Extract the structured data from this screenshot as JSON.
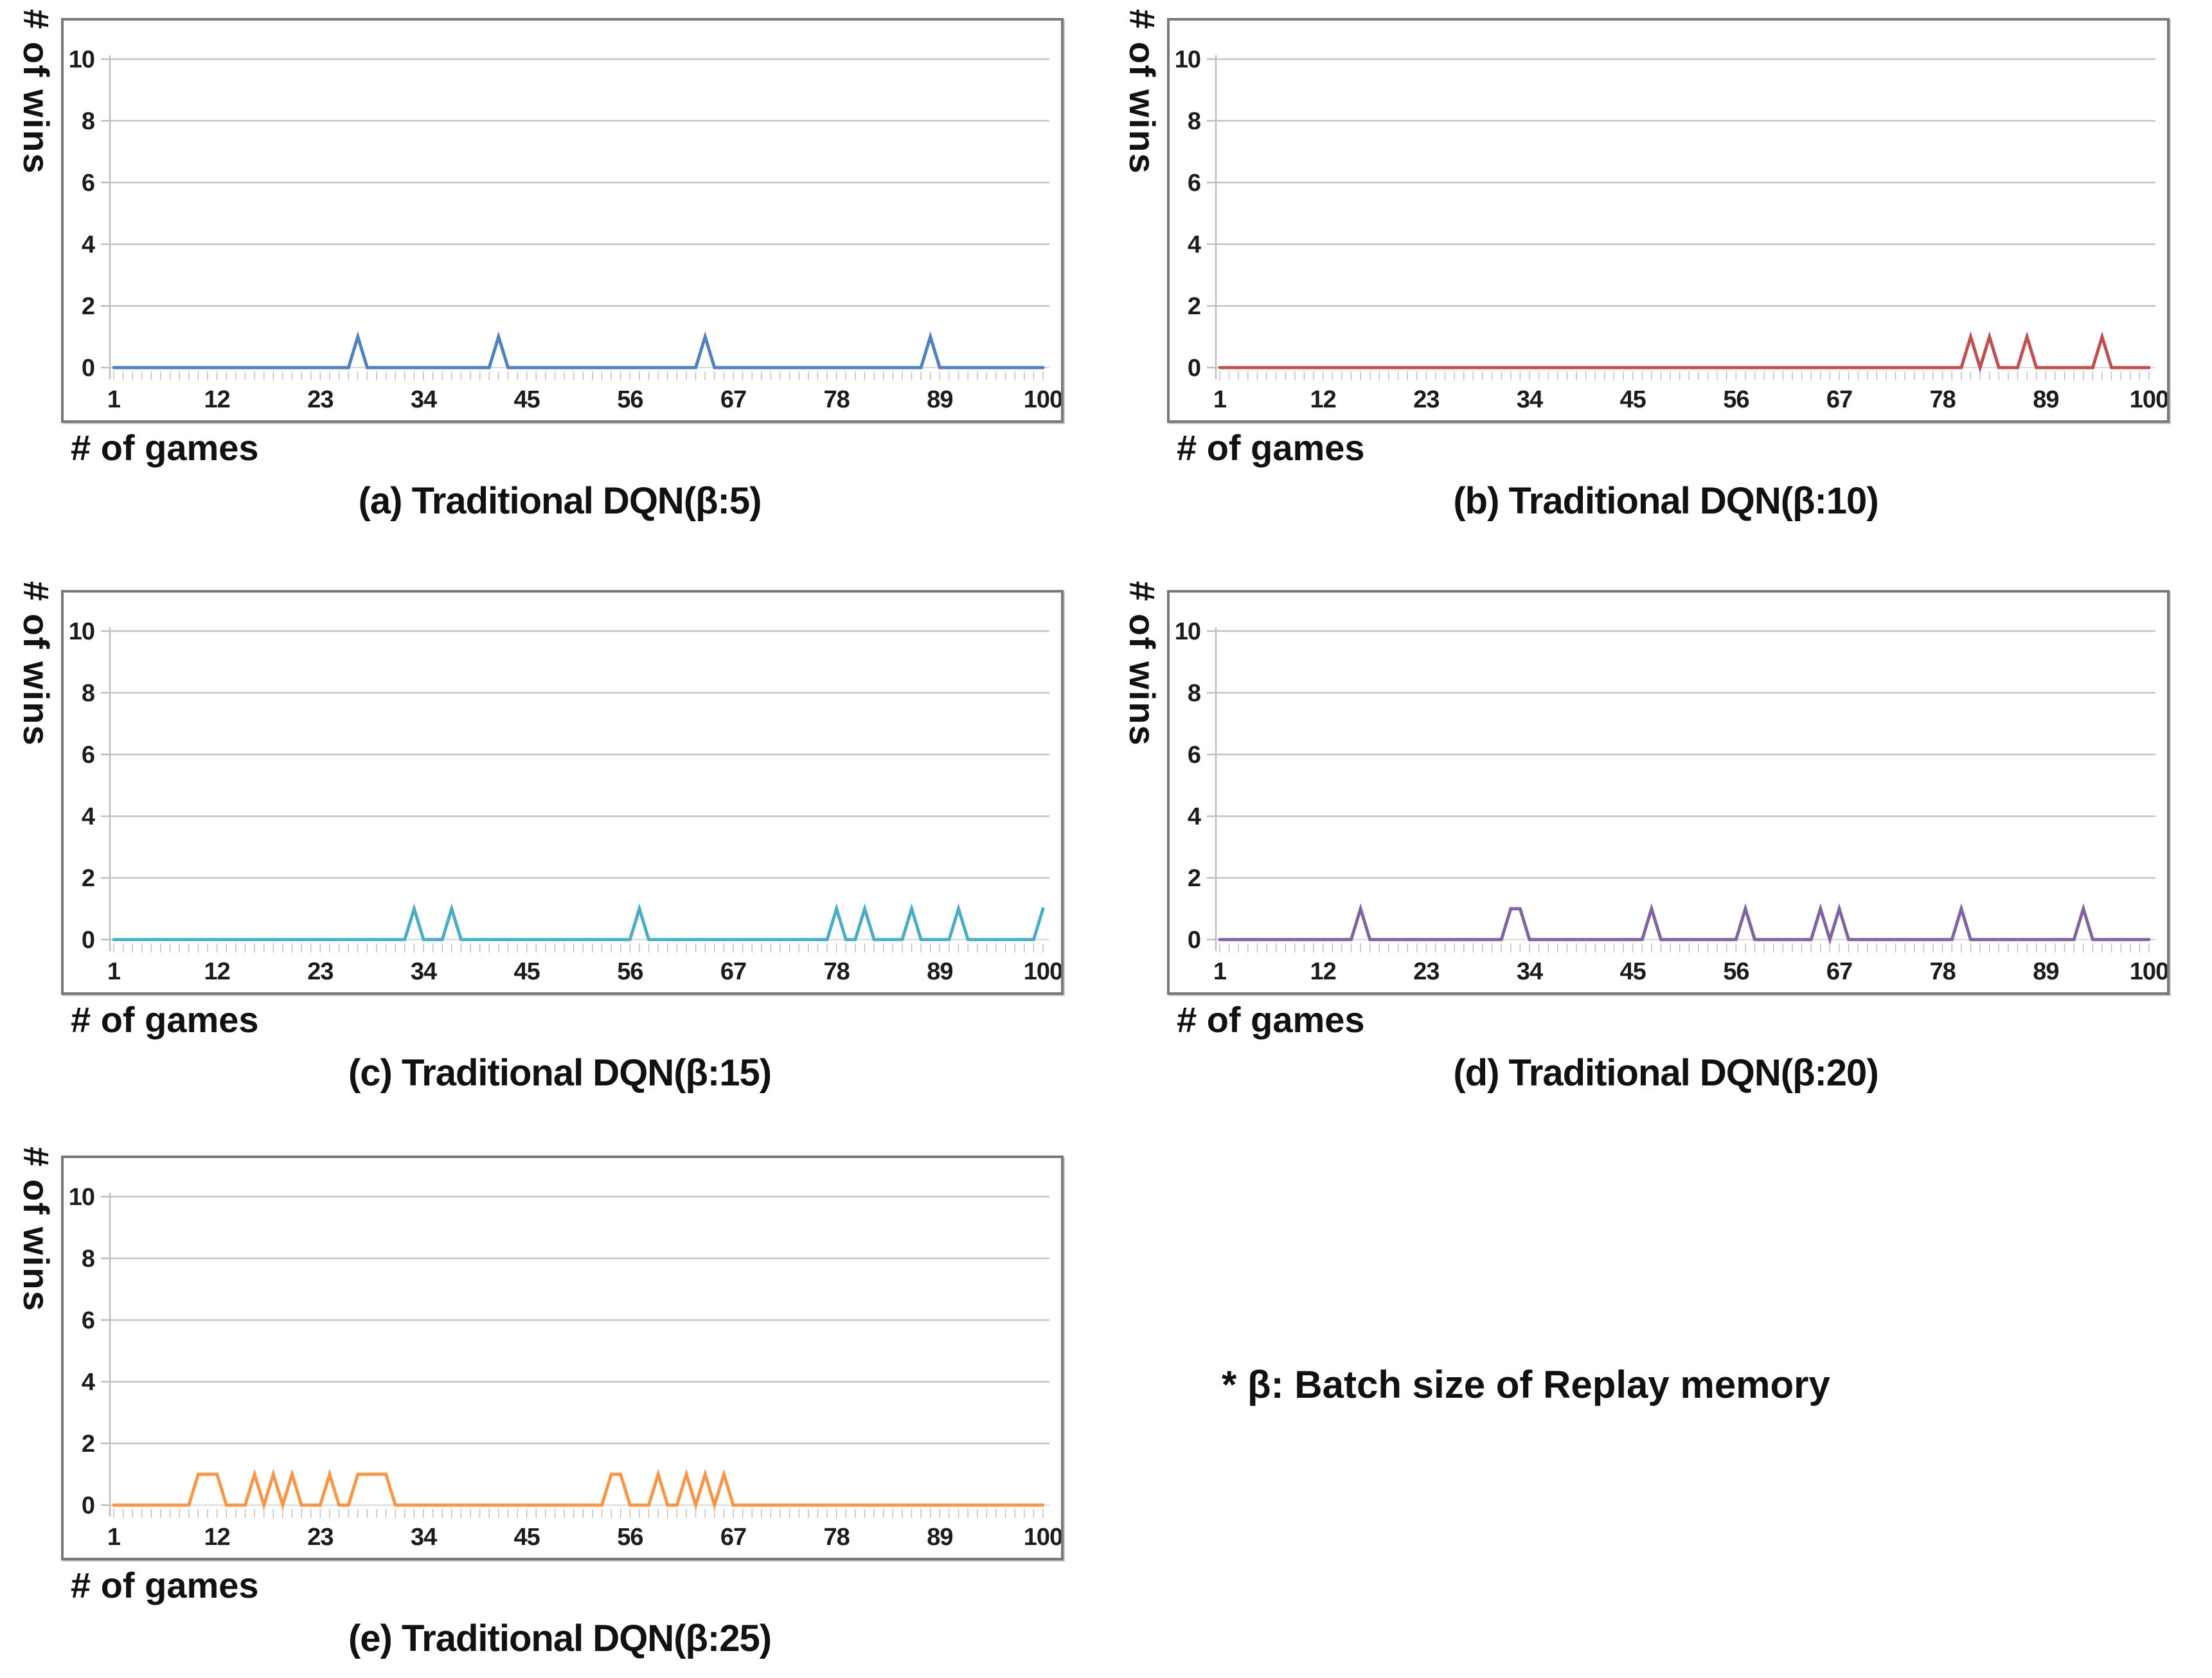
{
  "figure": {
    "ylabel": "# of wins",
    "xlabel": "# of games",
    "note": "* β: Batch size of Replay memory",
    "y_ticks": [
      0,
      2,
      4,
      6,
      8,
      10
    ],
    "x_ticks": [
      1,
      12,
      23,
      34,
      45,
      56,
      67,
      78,
      89,
      100
    ],
    "grid_color": "#c3c3c3",
    "axis_color": "#bfbfbf",
    "border_color": "#787878"
  },
  "chart_data": [
    {
      "id": "a",
      "type": "line",
      "caption": "(a) Traditional DQN(β:5)",
      "color": "#4F81BD",
      "xlabel": "# of games",
      "ylabel": "# of wins",
      "x_range": [
        1,
        100
      ],
      "ylim": [
        0,
        10
      ],
      "x_ticks": [
        1,
        12,
        23,
        34,
        45,
        56,
        67,
        78,
        89,
        100
      ],
      "y_ticks": [
        0,
        2,
        4,
        6,
        8,
        10
      ],
      "series_rule": "y=1 at win_games, y=0 at all other games 1..100",
      "win_games": [
        27,
        42,
        64,
        88
      ]
    },
    {
      "id": "b",
      "type": "line",
      "caption": "(b) Traditional DQN(β:10)",
      "color": "#C0504D",
      "xlabel": "# of games",
      "ylabel": "# of wins",
      "x_range": [
        1,
        100
      ],
      "ylim": [
        0,
        10
      ],
      "x_ticks": [
        1,
        12,
        23,
        34,
        45,
        56,
        67,
        78,
        89,
        100
      ],
      "y_ticks": [
        0,
        2,
        4,
        6,
        8,
        10
      ],
      "series_rule": "y=1 at win_games, y=0 at all other games 1..100",
      "win_games": [
        81,
        83,
        87,
        95
      ]
    },
    {
      "id": "c",
      "type": "line",
      "caption": "(c) Traditional DQN(β:15)",
      "color": "#4BACC6",
      "xlabel": "# of games",
      "ylabel": "# of wins",
      "x_range": [
        1,
        100
      ],
      "ylim": [
        0,
        10
      ],
      "x_ticks": [
        1,
        12,
        23,
        34,
        45,
        56,
        67,
        78,
        89,
        100
      ],
      "y_ticks": [
        0,
        2,
        4,
        6,
        8,
        10
      ],
      "series_rule": "y=1 at win_games, y=0 at all other games 1..100",
      "win_games": [
        33,
        37,
        57,
        78,
        81,
        86,
        91,
        100
      ]
    },
    {
      "id": "d",
      "type": "line",
      "caption": "(d) Traditional DQN(β:20)",
      "color": "#8064A2",
      "xlabel": "# of games",
      "ylabel": "# of wins",
      "x_range": [
        1,
        100
      ],
      "ylim": [
        0,
        10
      ],
      "x_ticks": [
        1,
        12,
        23,
        34,
        45,
        56,
        67,
        78,
        89,
        100
      ],
      "y_ticks": [
        0,
        2,
        4,
        6,
        8,
        10
      ],
      "series_rule": "y=1 at win_games, y=0 at all other games 1..100",
      "win_games": [
        16,
        32,
        33,
        47,
        57,
        65,
        67,
        80,
        93
      ]
    },
    {
      "id": "e",
      "type": "line",
      "caption": "(e) Traditional DQN(β:25)",
      "color": "#F79646",
      "xlabel": "# of games",
      "ylabel": "# of wins",
      "x_range": [
        1,
        100
      ],
      "ylim": [
        0,
        10
      ],
      "x_ticks": [
        1,
        12,
        23,
        34,
        45,
        56,
        67,
        78,
        89,
        100
      ],
      "y_ticks": [
        0,
        2,
        4,
        6,
        8,
        10
      ],
      "series_rule": "y=1 at win_games, y=0 at all other games 1..100",
      "win_games": [
        10,
        11,
        12,
        16,
        18,
        20,
        24,
        27,
        28,
        29,
        30,
        54,
        55,
        59,
        62,
        64,
        66
      ]
    }
  ]
}
